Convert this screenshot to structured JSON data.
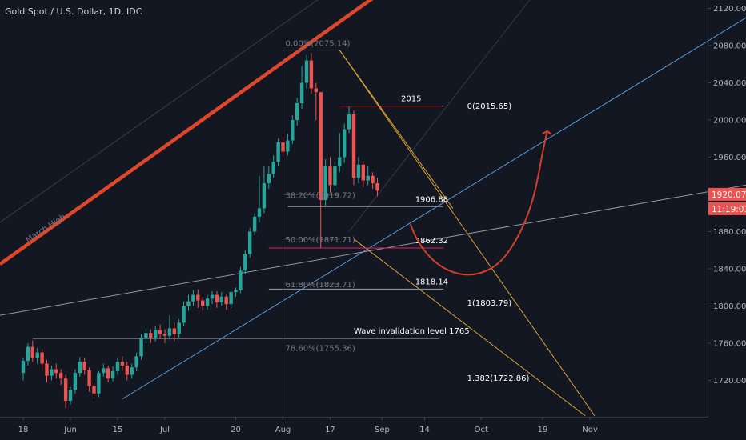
{
  "header": {
    "title": "Gold Spot / U.S. Dollar, 1D, IDC"
  },
  "colors": {
    "up": "#26a69a",
    "down": "#ef5350",
    "background": "#131722",
    "resistance": "#e0462c",
    "channel": "#5b9bd5",
    "fan": "#d9a233",
    "projection": "#d43f2a"
  },
  "chart_data": {
    "type": "candlestick",
    "title": "Gold Spot / U.S. Dollar, 1D, IDC",
    "y_ticks": [
      1720,
      1760,
      1800,
      1840,
      1880,
      1920,
      1960,
      2000,
      2040,
      2080,
      2120
    ],
    "y_tick_labels": [
      "1720.00",
      "1760.00",
      "1800.00",
      "1840.00",
      "1880.00",
      "1920.00",
      "1960.00",
      "2000.00",
      "2040.00",
      "2080.00",
      "2120.00"
    ],
    "x_ticks": [
      {
        "label": "18",
        "i": 0
      },
      {
        "label": "Jun",
        "i": 10
      },
      {
        "label": "15",
        "i": 20
      },
      {
        "label": "Jul",
        "i": 30
      },
      {
        "label": "20",
        "i": 45
      },
      {
        "label": "Aug",
        "i": 55
      },
      {
        "label": "17",
        "i": 65
      },
      {
        "label": "Sep",
        "i": 76
      },
      {
        "label": "14",
        "i": 85
      },
      {
        "label": "Oct",
        "i": 97
      },
      {
        "label": "19",
        "i": 110
      },
      {
        "label": "Nov",
        "i": 120
      }
    ],
    "candles": [
      [
        1728,
        1741,
        1720,
        1744
      ],
      [
        1741,
        1756,
        1736,
        1760
      ],
      [
        1756,
        1744,
        1740,
        1763
      ],
      [
        1744,
        1750,
        1738,
        1755
      ],
      [
        1750,
        1738,
        1730,
        1754
      ],
      [
        1738,
        1725,
        1718,
        1742
      ],
      [
        1725,
        1732,
        1720,
        1736
      ],
      [
        1732,
        1728,
        1722,
        1738
      ],
      [
        1728,
        1722,
        1715,
        1732
      ],
      [
        1722,
        1698,
        1690,
        1726
      ],
      [
        1698,
        1710,
        1694,
        1713
      ],
      [
        1710,
        1728,
        1706,
        1732
      ],
      [
        1728,
        1740,
        1724,
        1745
      ],
      [
        1740,
        1731,
        1726,
        1744
      ],
      [
        1731,
        1714,
        1708,
        1734
      ],
      [
        1714,
        1706,
        1700,
        1718
      ],
      [
        1706,
        1728,
        1702,
        1730
      ],
      [
        1728,
        1733,
        1724,
        1738
      ],
      [
        1733,
        1722,
        1718,
        1736
      ],
      [
        1722,
        1730,
        1719,
        1735
      ],
      [
        1730,
        1740,
        1726,
        1744
      ],
      [
        1740,
        1736,
        1730,
        1746
      ],
      [
        1736,
        1726,
        1720,
        1740
      ],
      [
        1726,
        1734,
        1722,
        1738
      ],
      [
        1734,
        1746,
        1730,
        1750
      ],
      [
        1746,
        1766,
        1742,
        1770
      ],
      [
        1766,
        1771,
        1760,
        1776
      ],
      [
        1771,
        1766,
        1760,
        1775
      ],
      [
        1766,
        1774,
        1762,
        1778
      ],
      [
        1774,
        1770,
        1765,
        1780
      ],
      [
        1770,
        1768,
        1760,
        1775
      ],
      [
        1768,
        1776,
        1764,
        1790
      ],
      [
        1776,
        1770,
        1762,
        1782
      ],
      [
        1770,
        1782,
        1766,
        1786
      ],
      [
        1782,
        1800,
        1778,
        1805
      ],
      [
        1800,
        1805,
        1795,
        1812
      ],
      [
        1805,
        1812,
        1800,
        1817
      ],
      [
        1812,
        1806,
        1798,
        1818
      ],
      [
        1806,
        1800,
        1795,
        1810
      ],
      [
        1800,
        1808,
        1796,
        1812
      ],
      [
        1808,
        1812,
        1802,
        1816
      ],
      [
        1812,
        1804,
        1798,
        1816
      ],
      [
        1804,
        1810,
        1800,
        1815
      ],
      [
        1810,
        1802,
        1796,
        1812
      ],
      [
        1802,
        1815,
        1798,
        1818
      ],
      [
        1815,
        1817,
        1810,
        1820
      ],
      [
        1817,
        1838,
        1814,
        1842
      ],
      [
        1838,
        1856,
        1834,
        1860
      ],
      [
        1856,
        1880,
        1852,
        1884
      ],
      [
        1880,
        1896,
        1876,
        1900
      ],
      [
        1896,
        1905,
        1890,
        1940
      ],
      [
        1905,
        1932,
        1900,
        1950
      ],
      [
        1932,
        1942,
        1926,
        1950
      ],
      [
        1942,
        1955,
        1938,
        1962
      ],
      [
        1955,
        1976,
        1950,
        1980
      ],
      [
        1976,
        1966,
        1960,
        1982
      ],
      [
        1966,
        1978,
        1962,
        1985
      ],
      [
        1978,
        2000,
        1974,
        2005
      ],
      [
        2000,
        2018,
        1994,
        2024
      ],
      [
        2018,
        2040,
        2012,
        2058
      ],
      [
        2040,
        2064,
        2034,
        2070
      ],
      [
        2064,
        2034,
        2028,
        2072
      ],
      [
        2034,
        2030,
        2000,
        2040
      ],
      [
        2030,
        1914,
        1862,
        2030
      ],
      [
        1914,
        1950,
        1908,
        1958
      ],
      [
        1950,
        1930,
        1922,
        1960
      ],
      [
        1930,
        1950,
        1924,
        1955
      ],
      [
        1950,
        1960,
        1944,
        1986
      ],
      [
        1960,
        1990,
        1954,
        1996
      ],
      [
        1990,
        2006,
        1986,
        2015
      ],
      [
        2006,
        1938,
        1930,
        2010
      ],
      [
        1938,
        1952,
        1932,
        1960
      ],
      [
        1952,
        1935,
        1928,
        1956
      ],
      [
        1935,
        1940,
        1930,
        1950
      ],
      [
        1940,
        1932,
        1926,
        1944
      ],
      [
        1932,
        1924,
        1918,
        1938
      ]
    ],
    "levels": [
      {
        "label": "2015",
        "value": 2015
      },
      {
        "label": "1906.88",
        "value": 1906.88
      },
      {
        "label": "1862.32",
        "value": 1862.32
      },
      {
        "label": "1818.14",
        "value": 1818.14
      },
      {
        "label": "Wave invalidation level  1765",
        "value": 1765
      }
    ],
    "fib_labels": [
      {
        "label": "0.00%(2075.14)",
        "value": 2075.14
      },
      {
        "label": "38.20%(1919.72)",
        "value": 1919.72
      },
      {
        "label": "50.00%(1871.71)",
        "value": 1871.71
      },
      {
        "label": "61.80%(1823.71)",
        "value": 1823.71
      },
      {
        "label": "78.60%(1755.36)",
        "value": 1755.36
      }
    ],
    "targets": [
      {
        "label": "0(2015.65)",
        "value": 2015.65
      },
      {
        "label": "1(1803.79)",
        "value": 1803.79
      },
      {
        "label": "1.382(1722.86)",
        "value": 1722.86
      }
    ],
    "price_tag": {
      "price": "1920.07",
      "countdown": "11:19:01"
    },
    "trendline_label": "March High"
  }
}
